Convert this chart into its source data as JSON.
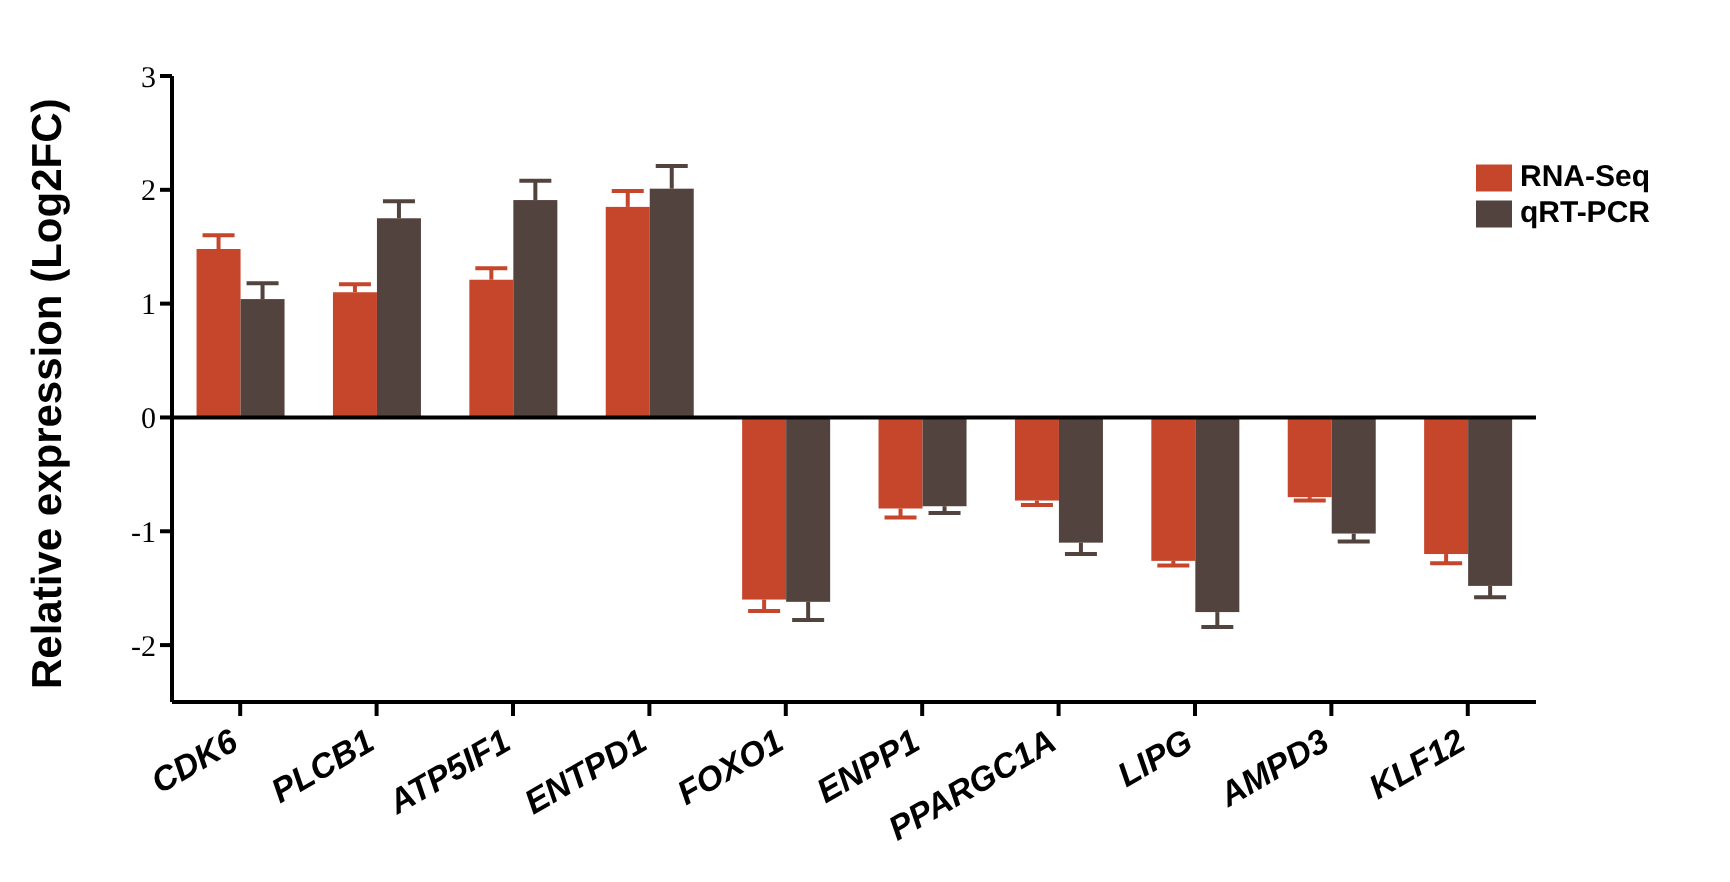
{
  "chart_data": {
    "type": "bar",
    "ylabel": "Relative expression (Log2FC)",
    "categories": [
      "CDK6",
      "PLCB1",
      "ATP5IF1",
      "ENTPD1",
      "FOXO1",
      "ENPP1",
      "PPARGC1A",
      "LIPG",
      "AMPD3",
      "KLF12"
    ],
    "series": [
      {
        "name": "RNA-Seq",
        "color": "#c5462b",
        "values": [
          1.48,
          1.1,
          1.21,
          1.85,
          -1.6,
          -0.8,
          -0.73,
          -1.26,
          -0.7,
          -1.2
        ],
        "errors": [
          0.12,
          0.07,
          0.1,
          0.14,
          0.1,
          0.08,
          0.04,
          0.04,
          0.03,
          0.08
        ]
      },
      {
        "name": "qRT-PCR",
        "color": "#53433f",
        "values": [
          1.04,
          1.75,
          1.91,
          2.01,
          -1.62,
          -0.78,
          -1.1,
          -1.71,
          -1.02,
          -1.48
        ],
        "errors": [
          0.14,
          0.15,
          0.17,
          0.2,
          0.16,
          0.06,
          0.1,
          0.13,
          0.07,
          0.1
        ]
      }
    ],
    "ylim": [
      -2.5,
      3
    ],
    "yticks": [
      -2,
      -1,
      0,
      1,
      2,
      3
    ],
    "ref_lines": [
      {
        "axis": "y",
        "value": 0,
        "color": "#000000"
      }
    ],
    "legend": "top right"
  }
}
